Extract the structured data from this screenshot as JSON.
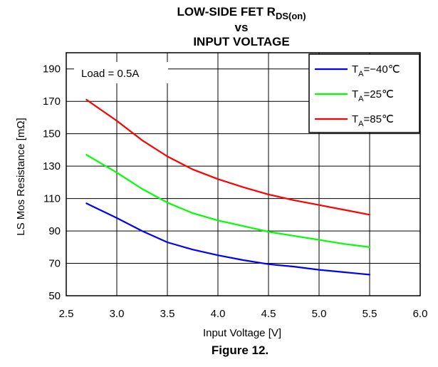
{
  "chart_data": {
    "type": "line",
    "title": {
      "line1_main": "LOW-SIDE FET R",
      "line1_sub": "DS(on)",
      "line2": "vs",
      "line3": "INPUT VOLTAGE"
    },
    "xlabel": "Input Voltage [V]",
    "ylabel": "LS Mos Resistance [mΩ]",
    "caption": "Figure 12.",
    "annotation": "Load = 0.5A",
    "xlim": [
      2.5,
      6.0
    ],
    "ylim": [
      50,
      200
    ],
    "x_ticks": [
      2.5,
      3.0,
      3.5,
      4.0,
      4.5,
      5.0,
      5.5,
      6.0
    ],
    "x_tick_labels": [
      "2.5",
      "3.0",
      "3.5",
      "4.0",
      "4.5",
      "5.0",
      "5.5",
      "6.0"
    ],
    "y_ticks": [
      50,
      70,
      90,
      110,
      130,
      150,
      170,
      190
    ],
    "y_tick_labels": [
      "50",
      "70",
      "90",
      "110",
      "130",
      "150",
      "170",
      "190"
    ],
    "grid": true,
    "legend_position": "top-right",
    "series": [
      {
        "name_main": "T",
        "name_sub": "A",
        "name_rest": "=−40℃",
        "color": "#0000ff",
        "x": [
          2.7,
          3.0,
          3.25,
          3.5,
          3.75,
          4.0,
          4.25,
          4.5,
          4.75,
          5.0,
          5.25,
          5.5
        ],
        "y": [
          107,
          98,
          90,
          83,
          78.5,
          75,
          72,
          69.5,
          68,
          66,
          64.5,
          63
        ]
      },
      {
        "name_main": "T",
        "name_sub": "A",
        "name_rest": "=25℃",
        "color": "#00ff00",
        "x": [
          2.7,
          3.0,
          3.25,
          3.5,
          3.75,
          4.0,
          4.25,
          4.5,
          4.75,
          5.0,
          5.25,
          5.5
        ],
        "y": [
          137,
          126,
          116,
          107.5,
          101,
          96.5,
          93,
          89.5,
          87,
          84.5,
          82,
          80
        ]
      },
      {
        "name_main": "T",
        "name_sub": "A",
        "name_rest": "=85℃",
        "color": "#ff0000",
        "x": [
          2.7,
          3.0,
          3.25,
          3.5,
          3.75,
          4.0,
          4.25,
          4.5,
          4.75,
          5.0,
          5.25,
          5.5
        ],
        "y": [
          171,
          158,
          146,
          136,
          128,
          122,
          117,
          112.5,
          109,
          106,
          103,
          100
        ]
      }
    ]
  }
}
